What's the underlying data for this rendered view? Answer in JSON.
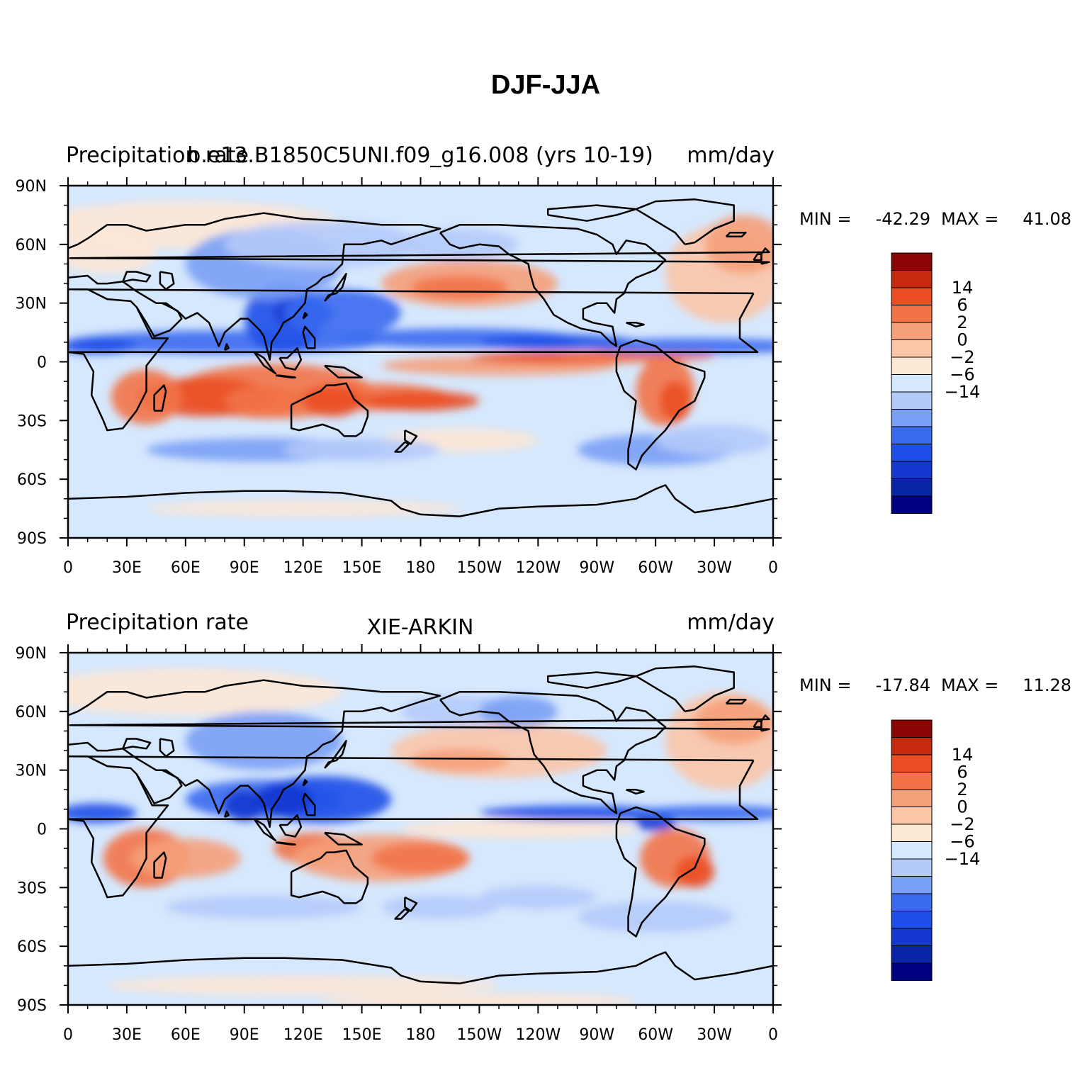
{
  "figure_title": "DJF-JJA",
  "colors": {
    "levels": [
      "#000080",
      "#0a24a8",
      "#1438d0",
      "#1f4fe8",
      "#3a6af0",
      "#7aa0f5",
      "#b4caf9",
      "#d6e8fd",
      "#fde7d5",
      "#fbc5a8",
      "#f5a07a",
      "#f27348",
      "#ea4e22",
      "#c52a0f",
      "#8c0505"
    ],
    "land_outline": "#000000"
  },
  "panels": [
    {
      "left_header": "Precipitation rate",
      "center_header": "b.e13.B1850C5UNI.f09_g16.008 (yrs 10-19)",
      "right_header": "mm/day",
      "min_label": "MIN =",
      "min_value": "-42.29",
      "max_label": "MAX =",
      "max_value": "41.08"
    },
    {
      "left_header": "Precipitation rate",
      "center_header": "XIE-ARKIN",
      "right_header": "mm/day",
      "min_label": "MIN =",
      "min_value": "-17.84",
      "max_label": "MAX =",
      "max_value": "11.28"
    }
  ],
  "colorbar": {
    "labels": [
      "14",
      "6",
      "2",
      "0",
      "−2",
      "−6",
      "−14"
    ]
  },
  "axes": {
    "x_ticks": [
      "0",
      "30E",
      "60E",
      "90E",
      "120E",
      "150E",
      "180",
      "150W",
      "120W",
      "90W",
      "60W",
      "30W",
      "0"
    ],
    "y_ticks": [
      "90N",
      "60N",
      "30N",
      "0",
      "30S",
      "60S",
      "90S"
    ]
  },
  "chart_data": [
    {
      "type": "heatmap",
      "title": "DJF-JJA",
      "series_name": "b.e13.B1850C5UNI.f09_g16.008 (yrs 10-19)",
      "variable": "Precipitation rate",
      "units": "mm/day",
      "x_range": [
        0,
        360
      ],
      "y_range": [
        -90,
        90
      ],
      "min": -42.29,
      "max": 41.08,
      "contour_levels": [
        -30,
        -20,
        -14,
        -10,
        -6,
        -4,
        -2,
        0,
        2,
        4,
        6,
        10,
        14,
        20
      ]
    },
    {
      "type": "heatmap",
      "title": "DJF-JJA",
      "series_name": "XIE-ARKIN",
      "variable": "Precipitation rate",
      "units": "mm/day",
      "x_range": [
        0,
        360
      ],
      "y_range": [
        -90,
        90
      ],
      "min": -17.84,
      "max": 11.28,
      "contour_levels": [
        -30,
        -20,
        -14,
        -10,
        -6,
        -4,
        -2,
        0,
        2,
        4,
        6,
        10,
        14,
        20
      ]
    }
  ]
}
